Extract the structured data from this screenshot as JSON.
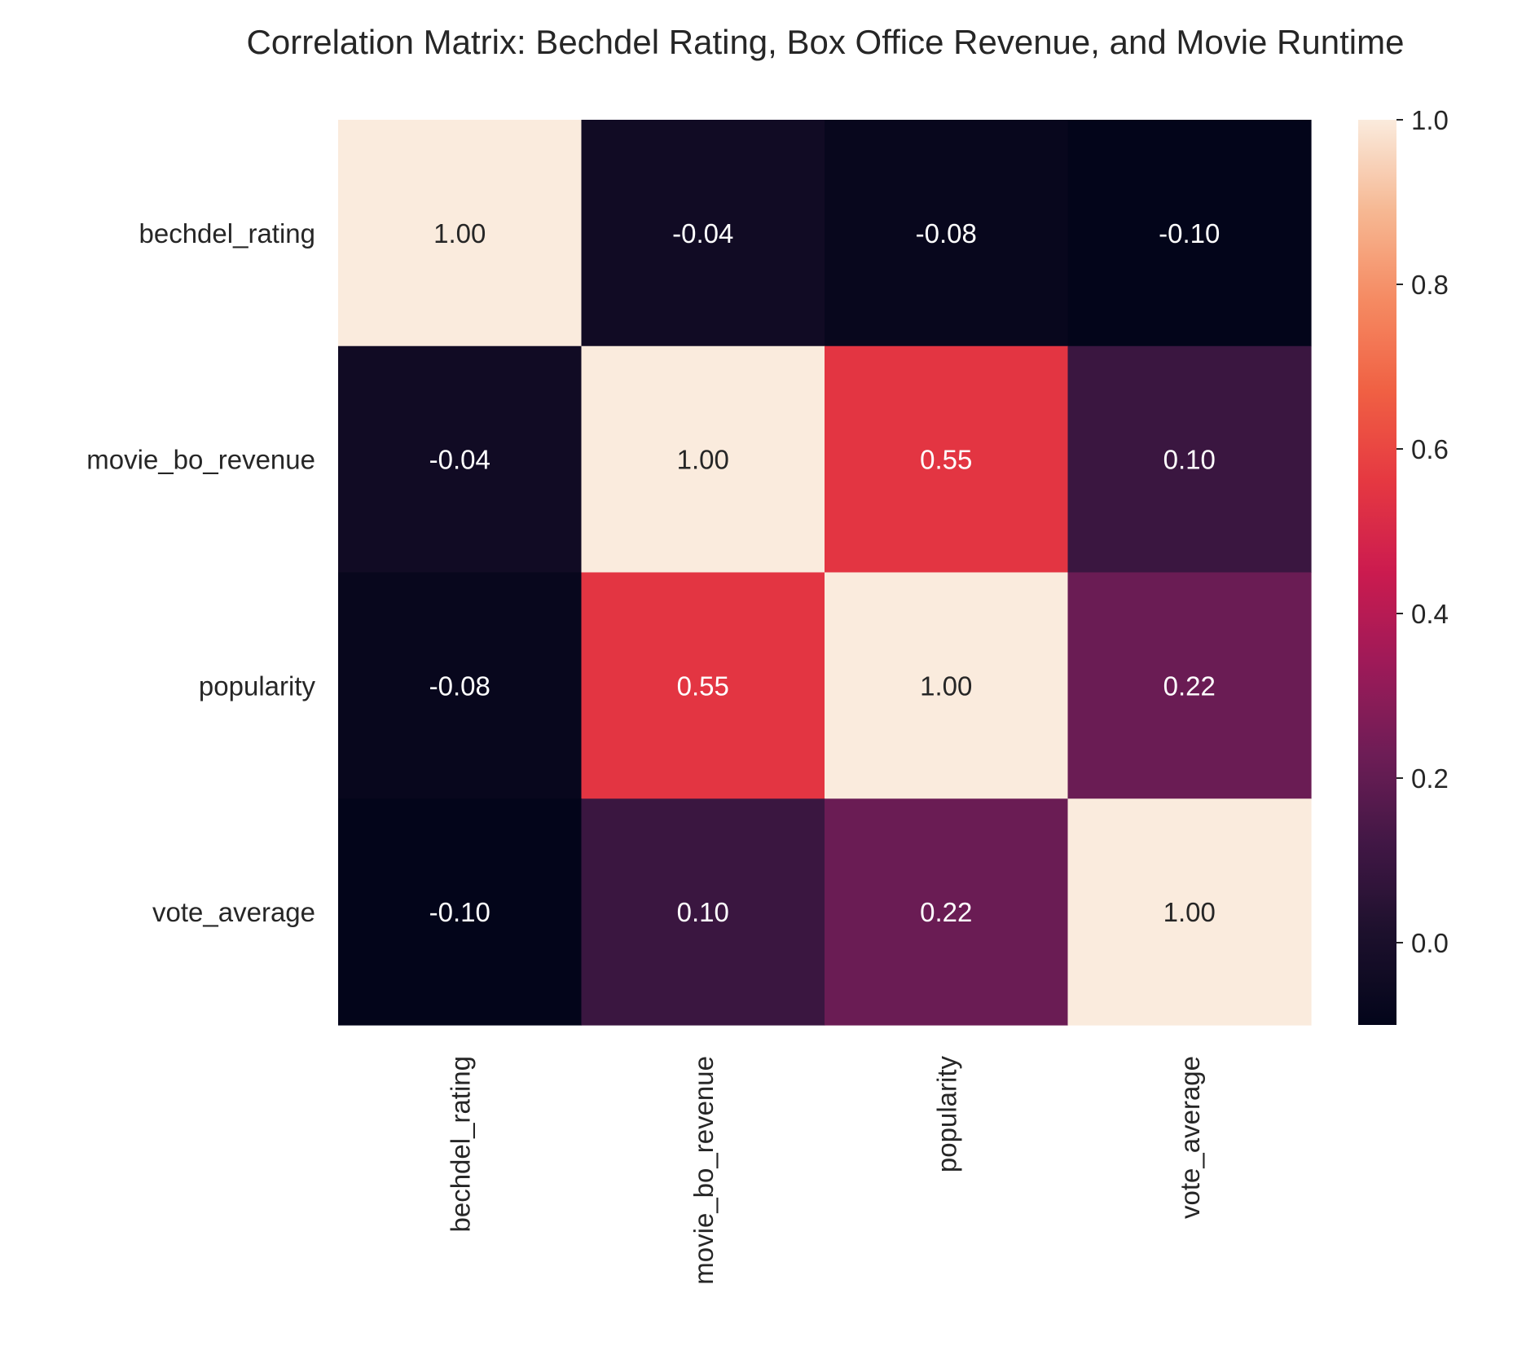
{
  "chart_data": {
    "type": "heatmap",
    "title": "Correlation Matrix: Bechdel Rating, Box Office Revenue, and Movie Runtime",
    "row_labels": [
      "bechdel_rating",
      "movie_bo_revenue",
      "popularity",
      "vote_average"
    ],
    "col_labels": [
      "bechdel_rating",
      "movie_bo_revenue",
      "popularity",
      "vote_average"
    ],
    "values": [
      [
        1.0,
        -0.04,
        -0.08,
        -0.1
      ],
      [
        -0.04,
        1.0,
        0.55,
        0.1
      ],
      [
        -0.08,
        0.55,
        1.0,
        0.22
      ],
      [
        -0.1,
        0.1,
        0.22,
        1.0
      ]
    ],
    "cell_labels": [
      [
        "1.00",
        "-0.04",
        "-0.08",
        "-0.10"
      ],
      [
        "-0.04",
        "1.00",
        "0.55",
        "0.10"
      ],
      [
        "-0.08",
        "0.55",
        "1.00",
        "0.22"
      ],
      [
        "-0.10",
        "0.10",
        "0.22",
        "1.00"
      ]
    ],
    "colorbar": {
      "range": [
        -0.1,
        1.0
      ],
      "ticks": [
        0.0,
        0.2,
        0.4,
        0.6,
        0.8,
        1.0
      ],
      "tick_labels": [
        "0.0",
        "0.2",
        "0.4",
        "0.6",
        "0.8",
        "1.0"
      ],
      "colormap": "rocket"
    },
    "xlabel": "",
    "ylabel": ""
  }
}
